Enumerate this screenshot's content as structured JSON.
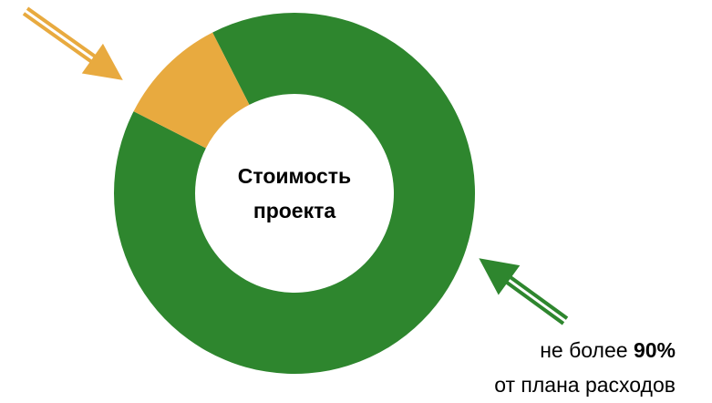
{
  "chart_data": {
    "type": "donut",
    "title": [
      "Стоимость",
      "проекта"
    ],
    "categories": [
      null,
      null
    ],
    "values": [
      90,
      10
    ],
    "value_labels": [
      "90%",
      null
    ],
    "colors": [
      "#2e862e",
      "#e8aa3f"
    ],
    "annotations": [
      "не более",
      "от плана расходов"
    ]
  }
}
